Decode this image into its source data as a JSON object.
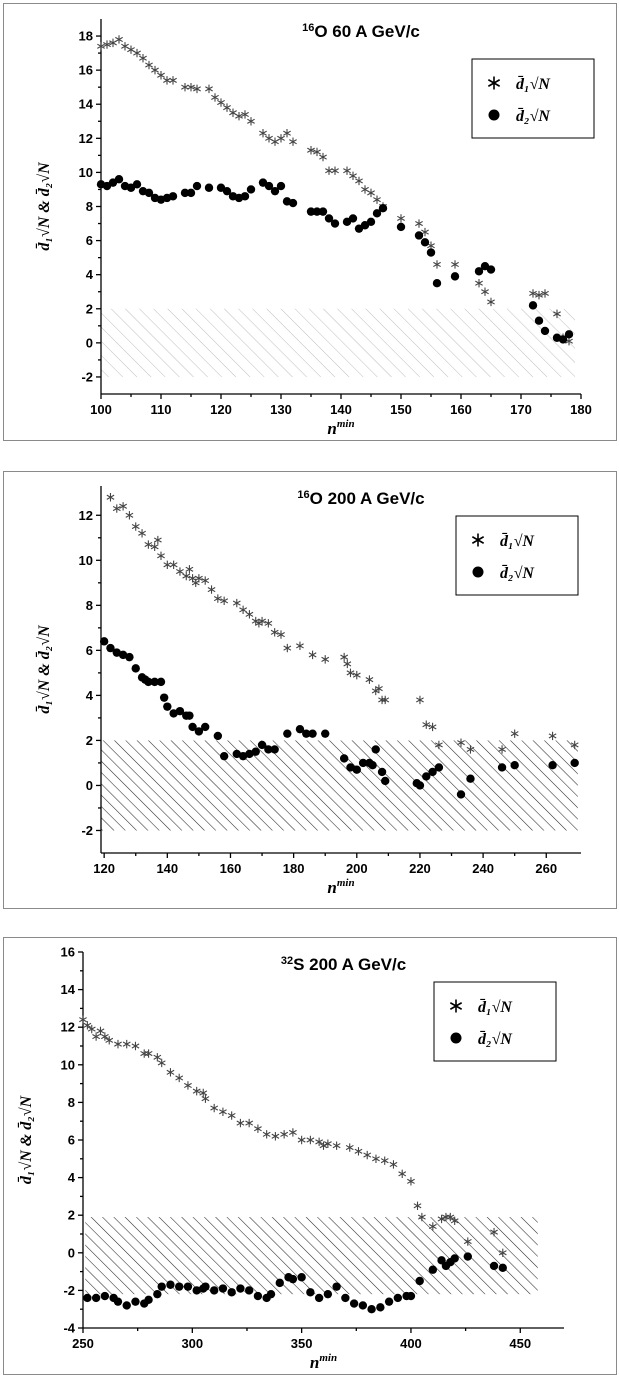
{
  "chart_data": [
    {
      "type": "scatter",
      "title_sup": "16",
      "title": "O  60 A GeV/c",
      "xlabel_base": "n",
      "xlabel_sup": "min",
      "ylabel": "d̄₁√N & d̄₂√N",
      "xlim": [
        100,
        180
      ],
      "ylim": [
        -3,
        19
      ],
      "xticks": [
        100,
        110,
        120,
        130,
        140,
        150,
        160,
        170,
        180
      ],
      "yticks": [
        -2,
        0,
        2,
        4,
        6,
        8,
        10,
        12,
        14,
        16,
        18
      ],
      "band": [
        -2,
        2
      ],
      "band_xlim": [
        100,
        179
      ],
      "hatch": "light",
      "legend_position": "top-right",
      "series": [
        {
          "name": "d̄₁√N",
          "marker": "star",
          "x": [
            100,
            101,
            102,
            103,
            104,
            105,
            106,
            107,
            108,
            109,
            110,
            111,
            112,
            114,
            115,
            116,
            118,
            119,
            120,
            121,
            122,
            123,
            124,
            125,
            127,
            128,
            129,
            130,
            131,
            132,
            135,
            136,
            137,
            138,
            139,
            141,
            142,
            143,
            144,
            145,
            146,
            147,
            150,
            153,
            154,
            155,
            156,
            159,
            163,
            164,
            165,
            172,
            173,
            174,
            176,
            177,
            178
          ],
          "y": [
            17.4,
            17.5,
            17.6,
            17.8,
            17.4,
            17.2,
            17.0,
            16.7,
            16.3,
            16.0,
            15.7,
            15.4,
            15.4,
            15.0,
            15.0,
            14.9,
            14.9,
            14.4,
            14.1,
            13.8,
            13.5,
            13.3,
            13.4,
            13.0,
            12.3,
            12.0,
            11.8,
            12.0,
            12.3,
            11.8,
            11.3,
            11.2,
            10.9,
            10.1,
            10.1,
            10.1,
            9.8,
            9.5,
            9.0,
            8.8,
            8.4,
            8.0,
            7.3,
            7.0,
            6.5,
            5.7,
            4.6,
            4.6,
            3.5,
            3.0,
            2.4,
            2.9,
            2.8,
            2.9,
            1.7,
            0.3,
            0.1
          ]
        },
        {
          "name": "d̄₂√N",
          "marker": "dot",
          "x": [
            100,
            101,
            102,
            103,
            104,
            105,
            106,
            107,
            108,
            109,
            110,
            111,
            112,
            114,
            115,
            116,
            118,
            120,
            121,
            122,
            123,
            124,
            125,
            127,
            128,
            129,
            130,
            131,
            132,
            135,
            136,
            137,
            138,
            139,
            141,
            142,
            143,
            144,
            145,
            146,
            147,
            150,
            153,
            154,
            155,
            156,
            159,
            163,
            164,
            165,
            172,
            173,
            174,
            176,
            177,
            178
          ],
          "y": [
            9.3,
            9.2,
            9.4,
            9.6,
            9.2,
            9.1,
            9.3,
            8.9,
            8.8,
            8.5,
            8.4,
            8.5,
            8.6,
            8.8,
            8.8,
            9.2,
            9.1,
            9.1,
            8.9,
            8.6,
            8.5,
            8.6,
            9.0,
            9.4,
            9.2,
            8.9,
            9.2,
            8.3,
            8.2,
            7.7,
            7.7,
            7.7,
            7.3,
            7.0,
            7.1,
            7.3,
            6.7,
            6.9,
            7.1,
            7.6,
            7.9,
            6.8,
            6.3,
            5.9,
            5.3,
            3.5,
            3.9,
            4.2,
            4.5,
            4.3,
            2.2,
            1.3,
            0.7,
            0.3,
            0.2,
            0.5
          ]
        }
      ]
    },
    {
      "type": "scatter",
      "title_sup": "16",
      "title": "O  200 A GeV/c",
      "xlabel_base": "n",
      "xlabel_sup": "min",
      "ylabel": "d̄₁√N & d̄₂√N",
      "xlim": [
        119,
        271
      ],
      "ylim": [
        -3,
        13.3
      ],
      "xticks": [
        120,
        140,
        160,
        180,
        200,
        220,
        240,
        260
      ],
      "yticks": [
        -2,
        0,
        2,
        4,
        6,
        8,
        10,
        12
      ],
      "band": [
        -2,
        2
      ],
      "band_xlim": [
        119,
        270
      ],
      "hatch": "dense",
      "legend_position": "top-right",
      "series": [
        {
          "name": "d̄₁√N",
          "marker": "star",
          "x": [
            122,
            124,
            126,
            128,
            130,
            132,
            134,
            136,
            137,
            138,
            140,
            142,
            144,
            146,
            147,
            148,
            149,
            150,
            152,
            154,
            156,
            158,
            162,
            164,
            166,
            168,
            169,
            170,
            172,
            174,
            176,
            178,
            182,
            186,
            190,
            196,
            197,
            198,
            200,
            204,
            206,
            207,
            208,
            209,
            220,
            222,
            224,
            226,
            233,
            236,
            246,
            250,
            262,
            269
          ],
          "y": [
            12.8,
            12.3,
            12.4,
            12.0,
            11.5,
            11.2,
            10.7,
            10.6,
            10.9,
            10.2,
            9.8,
            9.8,
            9.5,
            9.3,
            9.6,
            9.2,
            9.0,
            9.2,
            9.1,
            8.7,
            8.3,
            8.2,
            8.1,
            7.8,
            7.6,
            7.3,
            7.2,
            7.3,
            7.2,
            6.8,
            6.7,
            6.1,
            6.2,
            5.8,
            5.6,
            5.7,
            5.4,
            5.0,
            4.9,
            4.7,
            4.2,
            4.3,
            3.8,
            3.8,
            3.8,
            2.7,
            2.6,
            1.8,
            1.9,
            1.6,
            1.6,
            2.3,
            2.2,
            1.8
          ]
        },
        {
          "name": "d̄₂√N",
          "marker": "dot",
          "x": [
            120,
            122,
            124,
            126,
            128,
            130,
            132,
            133,
            134,
            136,
            138,
            139,
            140,
            142,
            144,
            146,
            147,
            148,
            150,
            152,
            156,
            158,
            162,
            164,
            166,
            168,
            170,
            172,
            174,
            178,
            182,
            184,
            186,
            190,
            196,
            198,
            200,
            202,
            204,
            205,
            206,
            208,
            209,
            219,
            220,
            222,
            224,
            226,
            233,
            236,
            246,
            250,
            262,
            269
          ],
          "y": [
            6.4,
            6.1,
            5.9,
            5.8,
            5.7,
            5.2,
            4.8,
            4.7,
            4.6,
            4.6,
            4.6,
            3.9,
            3.5,
            3.2,
            3.3,
            3.1,
            3.1,
            2.6,
            2.4,
            2.6,
            2.2,
            1.3,
            1.4,
            1.3,
            1.4,
            1.5,
            1.8,
            1.6,
            1.6,
            2.3,
            2.5,
            2.3,
            2.3,
            2.3,
            1.2,
            0.8,
            0.7,
            1.0,
            1.0,
            0.9,
            1.6,
            0.6,
            0.2,
            0.1,
            0.0,
            0.4,
            0.6,
            0.8,
            -0.4,
            0.3,
            0.8,
            0.9,
            0.9,
            1.0
          ]
        }
      ]
    },
    {
      "type": "scatter",
      "title_sup": "32",
      "title": "S  200 A GeV/c",
      "xlabel_base": "n",
      "xlabel_sup": "min",
      "ylabel": "d̄₁√N & d̄₂√N",
      "xlim": [
        250,
        470
      ],
      "ylim": [
        -4,
        16
      ],
      "xticks": [
        250,
        300,
        350,
        400,
        450
      ],
      "yticks": [
        -4,
        -2,
        0,
        2,
        4,
        6,
        8,
        10,
        12,
        14,
        16
      ],
      "band": [
        -2.2,
        1.9
      ],
      "band_xlim": [
        251,
        458
      ],
      "hatch": "dense",
      "legend_position": "top-right",
      "series": [
        {
          "name": "d̄₁√N",
          "marker": "star",
          "x": [
            250,
            252,
            254,
            256,
            258,
            260,
            262,
            266,
            270,
            274,
            278,
            280,
            284,
            286,
            290,
            294,
            298,
            302,
            305,
            306,
            310,
            314,
            318,
            322,
            326,
            330,
            334,
            338,
            342,
            346,
            350,
            354,
            358,
            360,
            362,
            366,
            372,
            376,
            380,
            384,
            388,
            392,
            396,
            400,
            403,
            405,
            410,
            414,
            416,
            418,
            420,
            426,
            438,
            442
          ],
          "y": [
            12.4,
            12.1,
            11.9,
            11.5,
            11.8,
            11.5,
            11.3,
            11.1,
            11.1,
            11.0,
            10.6,
            10.6,
            10.4,
            10.1,
            9.6,
            9.3,
            8.9,
            8.6,
            8.5,
            8.2,
            7.7,
            7.5,
            7.3,
            6.9,
            6.9,
            6.6,
            6.3,
            6.2,
            6.3,
            6.4,
            6.0,
            6.0,
            5.9,
            5.7,
            5.8,
            5.7,
            5.6,
            5.4,
            5.2,
            5.0,
            4.9,
            4.7,
            4.2,
            3.8,
            2.5,
            1.9,
            1.4,
            1.8,
            1.9,
            1.9,
            1.7,
            0.6,
            1.1,
            0.0
          ]
        },
        {
          "name": "d̄₂√N",
          "marker": "dot",
          "x": [
            252,
            256,
            260,
            264,
            266,
            270,
            274,
            278,
            280,
            284,
            286,
            290,
            294,
            298,
            302,
            305,
            306,
            310,
            314,
            318,
            322,
            326,
            330,
            334,
            336,
            340,
            344,
            346,
            350,
            354,
            358,
            362,
            366,
            370,
            374,
            378,
            382,
            386,
            390,
            394,
            398,
            400,
            404,
            410,
            414,
            416,
            418,
            420,
            426,
            438,
            442
          ],
          "y": [
            -2.4,
            -2.4,
            -2.3,
            -2.4,
            -2.6,
            -2.8,
            -2.6,
            -2.7,
            -2.5,
            -2.2,
            -1.8,
            -1.7,
            -1.8,
            -1.8,
            -2.0,
            -1.9,
            -1.8,
            -2.0,
            -1.9,
            -2.1,
            -1.9,
            -2.0,
            -2.3,
            -2.4,
            -2.2,
            -1.6,
            -1.3,
            -1.4,
            -1.3,
            -2.1,
            -2.4,
            -2.2,
            -1.8,
            -2.4,
            -2.7,
            -2.8,
            -3.0,
            -2.9,
            -2.6,
            -2.4,
            -2.3,
            -2.3,
            -1.5,
            -0.9,
            -0.4,
            -0.7,
            -0.5,
            -0.3,
            -0.2,
            -0.7,
            -0.8
          ]
        }
      ]
    }
  ]
}
